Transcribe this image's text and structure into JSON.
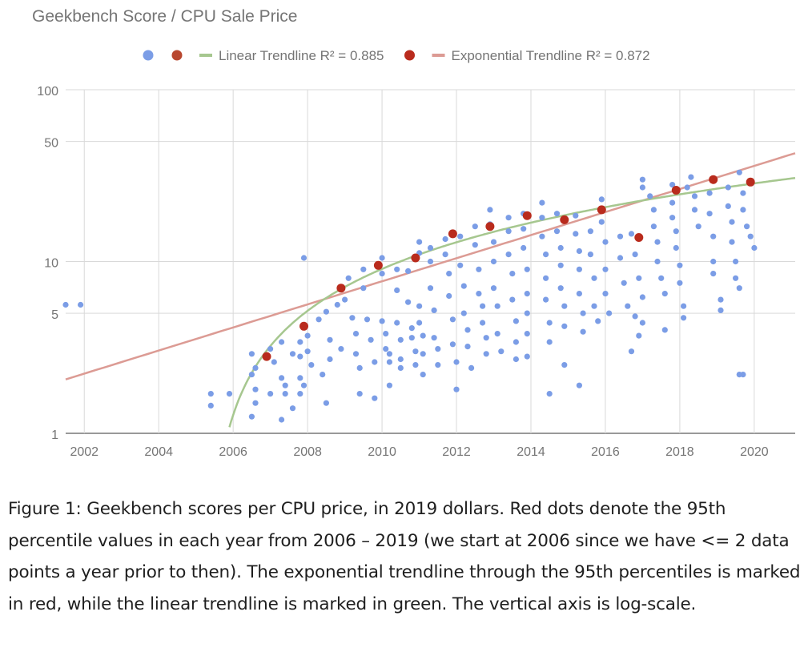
{
  "chart_data": {
    "type": "scatter",
    "title": "Geekbench Score / CPU Sale Price",
    "xlabel": "",
    "ylabel": "",
    "y_scale": "log",
    "xlim": [
      2001.5,
      2021.1
    ],
    "ylim": [
      1,
      100
    ],
    "x_ticks": [
      2002,
      2004,
      2006,
      2008,
      2010,
      2012,
      2014,
      2016,
      2018,
      2020
    ],
    "y_ticks": [
      1,
      5,
      10,
      50,
      100
    ],
    "grid": true,
    "legend_position": "top",
    "legend": [
      {
        "kind": "dot",
        "label": "",
        "color": "#7b9de6"
      },
      {
        "kind": "dot",
        "label": "",
        "color": "#b8472f"
      },
      {
        "kind": "line",
        "label": "Linear Trendline R² = 0.885",
        "color": "#a6c78f"
      },
      {
        "kind": "dot",
        "label": "",
        "color": "#b92b1d"
      },
      {
        "kind": "line",
        "label": "Exponential Trendline R² = 0.872",
        "color": "#dc9b94"
      }
    ],
    "colors": {
      "points": "#7b9de6",
      "percentile": "#b92b1d",
      "linear": "#a6c78f",
      "exponential": "#dc9b94",
      "grid": "#d9d9d9",
      "axis_text": "#757575"
    },
    "series": [
      {
        "type": "scatter",
        "points": [
          [
            2001.5,
            5.6
          ],
          [
            2001.9,
            5.6
          ],
          [
            2005.4,
            1.7
          ],
          [
            2005.4,
            1.45
          ],
          [
            2005.9,
            1.7
          ],
          [
            2006.5,
            2.9
          ],
          [
            2006.6,
            2.4
          ],
          [
            2006.5,
            2.2
          ],
          [
            2006.6,
            1.8
          ],
          [
            2006.6,
            1.5
          ],
          [
            2006.5,
            1.25
          ],
          [
            2007.0,
            3.1
          ],
          [
            2007.0,
            1.7
          ],
          [
            2007.1,
            2.6
          ],
          [
            2007.3,
            3.4
          ],
          [
            2007.3,
            2.1
          ],
          [
            2007.4,
            1.9
          ],
          [
            2007.4,
            1.7
          ],
          [
            2007.3,
            1.2
          ],
          [
            2007.6,
            2.9
          ],
          [
            2007.6,
            1.4
          ],
          [
            2007.8,
            3.4
          ],
          [
            2007.8,
            2.8
          ],
          [
            2007.8,
            2.1
          ],
          [
            2007.8,
            1.7
          ],
          [
            2007.9,
            1.9
          ],
          [
            2007.9,
            10.5
          ],
          [
            2008.0,
            3.7
          ],
          [
            2008.0,
            3.0
          ],
          [
            2008.1,
            2.5
          ],
          [
            2008.3,
            4.6
          ],
          [
            2008.4,
            2.2
          ],
          [
            2008.5,
            1.5
          ],
          [
            2008.5,
            5.1
          ],
          [
            2008.6,
            3.5
          ],
          [
            2008.6,
            2.7
          ],
          [
            2008.8,
            5.6
          ],
          [
            2008.9,
            3.1
          ],
          [
            2009.0,
            6.0
          ],
          [
            2009.1,
            8.0
          ],
          [
            2009.2,
            4.7
          ],
          [
            2009.3,
            3.8
          ],
          [
            2009.3,
            2.9
          ],
          [
            2009.4,
            2.4
          ],
          [
            2009.4,
            1.7
          ],
          [
            2009.5,
            9.0
          ],
          [
            2009.5,
            7.0
          ],
          [
            2009.6,
            4.6
          ],
          [
            2009.7,
            3.5
          ],
          [
            2009.8,
            2.6
          ],
          [
            2009.8,
            1.6
          ],
          [
            2010.0,
            10.5
          ],
          [
            2010.0,
            8.5
          ],
          [
            2010.0,
            4.5
          ],
          [
            2010.1,
            3.8
          ],
          [
            2010.1,
            3.1
          ],
          [
            2010.2,
            2.9
          ],
          [
            2010.2,
            2.6
          ],
          [
            2010.2,
            1.9
          ],
          [
            2010.4,
            9.0
          ],
          [
            2010.4,
            6.8
          ],
          [
            2010.4,
            4.4
          ],
          [
            2010.5,
            3.5
          ],
          [
            2010.5,
            2.7
          ],
          [
            2010.5,
            2.4
          ],
          [
            2010.7,
            8.8
          ],
          [
            2010.7,
            5.8
          ],
          [
            2010.8,
            4.1
          ],
          [
            2010.8,
            3.6
          ],
          [
            2010.9,
            3.0
          ],
          [
            2010.9,
            2.5
          ],
          [
            2011.0,
            13.0
          ],
          [
            2011.0,
            11.2
          ],
          [
            2011.0,
            5.5
          ],
          [
            2011.0,
            4.4
          ],
          [
            2011.1,
            3.7
          ],
          [
            2011.1,
            2.9
          ],
          [
            2011.1,
            2.2
          ],
          [
            2011.3,
            12.0
          ],
          [
            2011.3,
            10.0
          ],
          [
            2011.3,
            7.0
          ],
          [
            2011.4,
            5.2
          ],
          [
            2011.4,
            3.6
          ],
          [
            2011.5,
            3.1
          ],
          [
            2011.5,
            2.5
          ],
          [
            2011.7,
            13.5
          ],
          [
            2011.7,
            11.0
          ],
          [
            2011.8,
            8.5
          ],
          [
            2011.8,
            6.3
          ],
          [
            2011.9,
            4.6
          ],
          [
            2011.9,
            3.3
          ],
          [
            2012.0,
            2.6
          ],
          [
            2012.0,
            1.8
          ],
          [
            2012.1,
            14.0
          ],
          [
            2012.1,
            9.5
          ],
          [
            2012.2,
            7.2
          ],
          [
            2012.2,
            5.0
          ],
          [
            2012.3,
            4.0
          ],
          [
            2012.3,
            3.2
          ],
          [
            2012.4,
            2.4
          ],
          [
            2012.5,
            16.0
          ],
          [
            2012.5,
            12.5
          ],
          [
            2012.6,
            9.0
          ],
          [
            2012.6,
            6.5
          ],
          [
            2012.7,
            5.5
          ],
          [
            2012.7,
            4.4
          ],
          [
            2012.8,
            3.6
          ],
          [
            2012.8,
            2.9
          ],
          [
            2012.9,
            20.0
          ],
          [
            2012.9,
            16.5
          ],
          [
            2013.0,
            13.0
          ],
          [
            2013.0,
            10.0
          ],
          [
            2013.0,
            7.0
          ],
          [
            2013.1,
            5.5
          ],
          [
            2013.1,
            3.8
          ],
          [
            2013.2,
            3.0
          ],
          [
            2013.4,
            18.0
          ],
          [
            2013.4,
            15.0
          ],
          [
            2013.4,
            11.0
          ],
          [
            2013.5,
            8.5
          ],
          [
            2013.5,
            6.0
          ],
          [
            2013.6,
            4.5
          ],
          [
            2013.6,
            3.4
          ],
          [
            2013.6,
            2.7
          ],
          [
            2013.8,
            19.0
          ],
          [
            2013.8,
            15.5
          ],
          [
            2013.8,
            12.0
          ],
          [
            2013.9,
            9.0
          ],
          [
            2013.9,
            6.5
          ],
          [
            2013.9,
            5.0
          ],
          [
            2013.9,
            3.8
          ],
          [
            2013.9,
            2.8
          ],
          [
            2014.3,
            22.0
          ],
          [
            2014.3,
            18.0
          ],
          [
            2014.3,
            14.0
          ],
          [
            2014.4,
            11.0
          ],
          [
            2014.4,
            8.0
          ],
          [
            2014.4,
            6.0
          ],
          [
            2014.5,
            4.4
          ],
          [
            2014.5,
            3.4
          ],
          [
            2014.7,
            19.0
          ],
          [
            2014.7,
            15.0
          ],
          [
            2014.8,
            12.0
          ],
          [
            2014.8,
            9.5
          ],
          [
            2014.8,
            7.0
          ],
          [
            2014.9,
            5.5
          ],
          [
            2014.9,
            4.2
          ],
          [
            2014.9,
            2.5
          ],
          [
            2014.5,
            1.7
          ],
          [
            2015.2,
            18.5
          ],
          [
            2015.2,
            14.5
          ],
          [
            2015.3,
            11.5
          ],
          [
            2015.3,
            9.0
          ],
          [
            2015.3,
            6.5
          ],
          [
            2015.4,
            5.0
          ],
          [
            2015.4,
            3.9
          ],
          [
            2015.3,
            1.9
          ],
          [
            2015.6,
            15.0
          ],
          [
            2015.6,
            11.0
          ],
          [
            2015.7,
            8.0
          ],
          [
            2015.7,
            5.5
          ],
          [
            2015.8,
            4.5
          ],
          [
            2015.9,
            23.0
          ],
          [
            2015.9,
            17.0
          ],
          [
            2016.0,
            13.0
          ],
          [
            2016.0,
            9.0
          ],
          [
            2016.0,
            6.5
          ],
          [
            2016.1,
            5.0
          ],
          [
            2016.4,
            14.0
          ],
          [
            2016.4,
            10.5
          ],
          [
            2016.5,
            7.5
          ],
          [
            2016.6,
            5.5
          ],
          [
            2016.8,
            4.8
          ],
          [
            2016.9,
            3.7
          ],
          [
            2016.7,
            14.5
          ],
          [
            2016.8,
            11.0
          ],
          [
            2016.9,
            8.0
          ],
          [
            2017.0,
            6.2
          ],
          [
            2017.0,
            4.4
          ],
          [
            2016.7,
            3.0
          ],
          [
            2017.0,
            30.0
          ],
          [
            2017.0,
            27.0
          ],
          [
            2017.2,
            24.0
          ],
          [
            2017.3,
            20.0
          ],
          [
            2017.3,
            16.0
          ],
          [
            2017.4,
            13.0
          ],
          [
            2017.4,
            10.0
          ],
          [
            2017.5,
            8.0
          ],
          [
            2017.6,
            6.5
          ],
          [
            2017.6,
            4.0
          ],
          [
            2017.8,
            28.0
          ],
          [
            2017.8,
            22.0
          ],
          [
            2017.8,
            18.0
          ],
          [
            2017.9,
            15.0
          ],
          [
            2017.9,
            12.0
          ],
          [
            2018.0,
            9.5
          ],
          [
            2018.0,
            7.5
          ],
          [
            2018.1,
            5.5
          ],
          [
            2018.1,
            4.7
          ],
          [
            2018.2,
            27.0
          ],
          [
            2018.3,
            31.0
          ],
          [
            2018.4,
            24.0
          ],
          [
            2018.4,
            20.0
          ],
          [
            2018.5,
            16.0
          ],
          [
            2018.8,
            25.0
          ],
          [
            2018.8,
            19.0
          ],
          [
            2018.9,
            14.0
          ],
          [
            2018.9,
            10.0
          ],
          [
            2018.9,
            8.5
          ],
          [
            2019.1,
            6.0
          ],
          [
            2019.1,
            5.2
          ],
          [
            2019.3,
            27.0
          ],
          [
            2019.3,
            21.0
          ],
          [
            2019.4,
            17.0
          ],
          [
            2019.4,
            13.0
          ],
          [
            2019.5,
            10.0
          ],
          [
            2019.5,
            8.0
          ],
          [
            2019.6,
            7.0
          ],
          [
            2019.6,
            33.0
          ],
          [
            2019.7,
            25.0
          ],
          [
            2019.7,
            20.0
          ],
          [
            2019.8,
            16.0
          ],
          [
            2019.9,
            14.0
          ],
          [
            2020.0,
            12.0
          ],
          [
            2019.6,
            2.2
          ],
          [
            2019.7,
            2.2
          ]
        ]
      },
      {
        "type": "percentile",
        "points": [
          [
            2006.9,
            2.8
          ],
          [
            2007.9,
            4.2
          ],
          [
            2008.9,
            7.0
          ],
          [
            2009.9,
            9.5
          ],
          [
            2010.9,
            10.5
          ],
          [
            2011.9,
            14.5
          ],
          [
            2012.9,
            16.0
          ],
          [
            2013.9,
            18.5
          ],
          [
            2014.9,
            17.5
          ],
          [
            2015.9,
            20.0
          ],
          [
            2016.9,
            13.8
          ],
          [
            2017.9,
            26.0
          ],
          [
            2018.9,
            30.0
          ],
          [
            2019.9,
            29.0
          ]
        ]
      }
    ]
  },
  "caption": "Figure 1: Geekbench scores per CPU price, in 2019 dollars. Red dots denote the 95th percentile values in each year from 2006 – 2019 (we start at 2006 since we have <= 2 data points a year prior to then). The exponential trendline through the 95th percentiles is marked in red, while the linear trendline is marked in green. The vertical axis is log-scale."
}
